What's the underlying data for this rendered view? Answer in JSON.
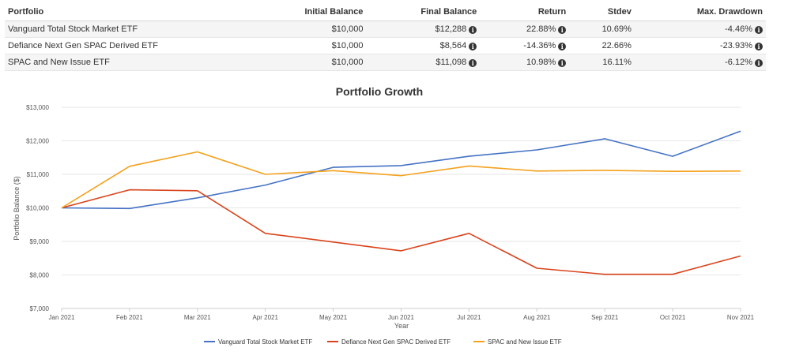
{
  "table": {
    "headers": [
      "Portfolio",
      "Initial Balance",
      "Final Balance",
      "Return",
      "Stdev",
      "Max. Drawdown"
    ],
    "info_icon": "info-icon",
    "rows": [
      {
        "portfolio": "Vanguard Total Stock Market ETF",
        "initial": "$10,000",
        "final": "$12,288",
        "return": "22.88%",
        "stdev": "10.69%",
        "drawdown": "-4.46%"
      },
      {
        "portfolio": "Defiance Next Gen SPAC Derived ETF",
        "initial": "$10,000",
        "final": "$8,564",
        "return": "-14.36%",
        "stdev": "22.66%",
        "drawdown": "-23.93%"
      },
      {
        "portfolio": "SPAC and New Issue ETF",
        "initial": "$10,000",
        "final": "$11,098",
        "return": "10.98%",
        "stdev": "16.11%",
        "drawdown": "-6.12%"
      }
    ]
  },
  "chart_data": {
    "type": "line",
    "title": "Portfolio Growth",
    "xlabel": "Year",
    "ylabel": "Portfolio Balance ($)",
    "categories": [
      "Jan 2021",
      "Feb 2021",
      "Mar 2021",
      "Apr 2021",
      "May 2021",
      "Jun 2021",
      "Jul 2021",
      "Aug 2021",
      "Sep 2021",
      "Oct 2021",
      "Nov 2021"
    ],
    "y_ticks": [
      7000,
      8000,
      9000,
      10000,
      11000,
      12000,
      13000
    ],
    "y_tick_labels": [
      "$7,000",
      "$8,000",
      "$9,000",
      "$10,000",
      "$11,000",
      "$12,000",
      "$13,000"
    ],
    "ylim": [
      7000,
      13000
    ],
    "grid": true,
    "legend_position": "bottom",
    "series": [
      {
        "name": "Vanguard Total Stock Market ETF",
        "color": "#4472c4",
        "values": [
          10000,
          9980,
          10300,
          10680,
          11210,
          11260,
          11540,
          11730,
          12060,
          11540,
          12288
        ]
      },
      {
        "name": "Defiance Next Gen SPAC Derived ETF",
        "color": "#d9441c",
        "values": [
          10000,
          10540,
          10510,
          9240,
          8980,
          8720,
          9240,
          8200,
          8020,
          8020,
          8564
        ]
      },
      {
        "name": "SPAC and New Issue ETF",
        "color": "#f4a11c",
        "values": [
          10000,
          11240,
          11670,
          11000,
          11110,
          10960,
          11250,
          11100,
          11120,
          11090,
          11098
        ]
      }
    ]
  }
}
